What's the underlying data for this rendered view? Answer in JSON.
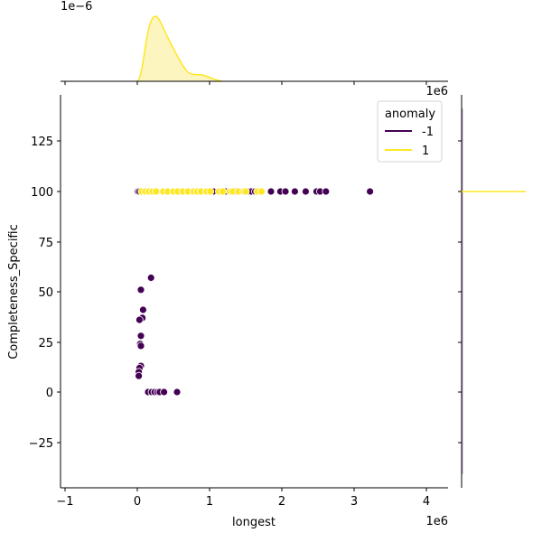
{
  "chart_data": {
    "type": "scatter",
    "title": "",
    "xlabel": "longest",
    "ylabel": "Completeness_Specific",
    "x_scale_label": "1e6",
    "top_marginal_scale_label": "1e−6",
    "right_marginal_scale_label": "1e6",
    "xlim": [
      -1050000,
      4300000
    ],
    "ylim": [
      -48,
      147
    ],
    "x_ticks": [
      -1,
      0,
      1,
      2,
      3,
      4
    ],
    "x_tick_labels": [
      "−1",
      "0",
      "1",
      "2",
      "3",
      "4"
    ],
    "y_ticks": [
      -25,
      0,
      25,
      50,
      75,
      100,
      125
    ],
    "y_tick_labels": [
      "−25",
      "0",
      "25",
      "50",
      "75",
      "100",
      "125"
    ],
    "grid": false,
    "legend": {
      "title": "anomaly",
      "position": "upper right",
      "entries": [
        {
          "label": "-1",
          "color": "#440154"
        },
        {
          "label": "1",
          "color": "#fde725"
        }
      ]
    },
    "series": [
      {
        "name": "-1",
        "color": "#440154",
        "points": [
          [
            10000,
            100
          ],
          [
            30000,
            100
          ],
          [
            1050000,
            100
          ],
          [
            1220000,
            100
          ],
          [
            1370000,
            100
          ],
          [
            1450000,
            100
          ],
          [
            1540000,
            100
          ],
          [
            1580000,
            100
          ],
          [
            1630000,
            100
          ],
          [
            1700000,
            100
          ],
          [
            1850000,
            100
          ],
          [
            1980000,
            100
          ],
          [
            2050000,
            100
          ],
          [
            2180000,
            100
          ],
          [
            2330000,
            100
          ],
          [
            2480000,
            100
          ],
          [
            2530000,
            100
          ],
          [
            2610000,
            100
          ],
          [
            3220000,
            100
          ],
          [
            190000,
            57
          ],
          [
            50000,
            51
          ],
          [
            80000,
            41
          ],
          [
            70000,
            37
          ],
          [
            30000,
            36
          ],
          [
            50000,
            28
          ],
          [
            40000,
            24
          ],
          [
            50000,
            23
          ],
          [
            50000,
            13
          ],
          [
            30000,
            12
          ],
          [
            20000,
            10
          ],
          [
            20000,
            8
          ],
          [
            150000,
            0
          ],
          [
            200000,
            0
          ],
          [
            240000,
            0
          ],
          [
            280000,
            0
          ],
          [
            310000,
            0
          ],
          [
            370000,
            0
          ],
          [
            550000,
            0
          ]
        ]
      },
      {
        "name": "1",
        "color": "#fde725",
        "points": [
          [
            60000,
            100
          ],
          [
            110000,
            100
          ],
          [
            160000,
            100
          ],
          [
            210000,
            100
          ],
          [
            260000,
            100
          ],
          [
            360000,
            100
          ],
          [
            420000,
            100
          ],
          [
            500000,
            100
          ],
          [
            560000,
            100
          ],
          [
            630000,
            100
          ],
          [
            700000,
            100
          ],
          [
            780000,
            100
          ],
          [
            830000,
            100
          ],
          [
            880000,
            100
          ],
          [
            960000,
            100
          ],
          [
            1010000,
            100
          ],
          [
            1130000,
            100
          ],
          [
            1180000,
            100
          ],
          [
            1280000,
            100
          ],
          [
            1320000,
            100
          ],
          [
            1400000,
            100
          ],
          [
            1470000,
            100
          ],
          [
            1500000,
            100
          ],
          [
            1660000,
            100
          ],
          [
            1720000,
            100
          ]
        ]
      }
    ],
    "marginal_top": {
      "type": "kde",
      "series": [
        {
          "name": "1",
          "color": "#fde725",
          "fill": "#fdf5c0",
          "peak_x": 250000,
          "description": "right-skewed density peaking near 0.25e6 with small shoulder near 0.85e6"
        },
        {
          "name": "-1",
          "color": "#440154",
          "description": "nearly flat near zero"
        }
      ]
    },
    "marginal_right": {
      "type": "kde",
      "series": [
        {
          "name": "1",
          "color": "#fde725",
          "description": "spike at y=100"
        },
        {
          "name": "-1",
          "color": "#440154",
          "description": "nearly flat near zero"
        }
      ]
    }
  }
}
